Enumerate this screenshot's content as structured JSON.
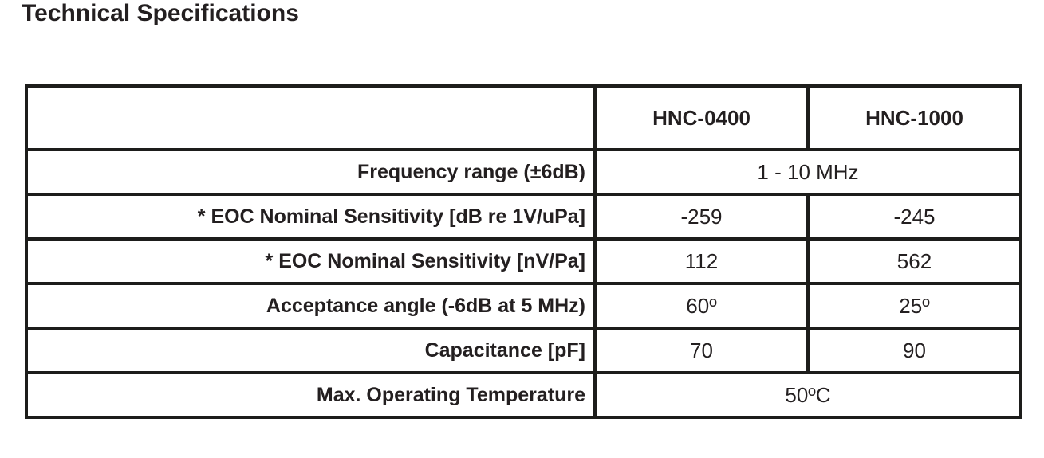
{
  "page": {
    "title": "Technical Specifications"
  },
  "table": {
    "columns": [
      "HNC-0400",
      "HNC-1000"
    ],
    "rows": [
      {
        "label": "Frequency range (±6dB)",
        "span": "1 - 10 MHz"
      },
      {
        "label": "* EOC Nominal Sensitivity [dB re 1V/uPa]",
        "hnc0400": "-259",
        "hnc1000": "-245"
      },
      {
        "label": "* EOC Nominal Sensitivity [nV/Pa]",
        "hnc0400": "112",
        "hnc1000": "562"
      },
      {
        "label": "Acceptance angle (-6dB at 5 MHz)",
        "hnc0400": "60º",
        "hnc1000": "25º"
      },
      {
        "label": "Capacitance [pF]",
        "hnc0400": "70",
        "hnc1000": "90"
      },
      {
        "label": "Max. Operating Temperature",
        "span": "50ºC"
      }
    ],
    "colors": {
      "border": "#1d1d1b",
      "text": "#231f20",
      "background": "#ffffff"
    }
  }
}
